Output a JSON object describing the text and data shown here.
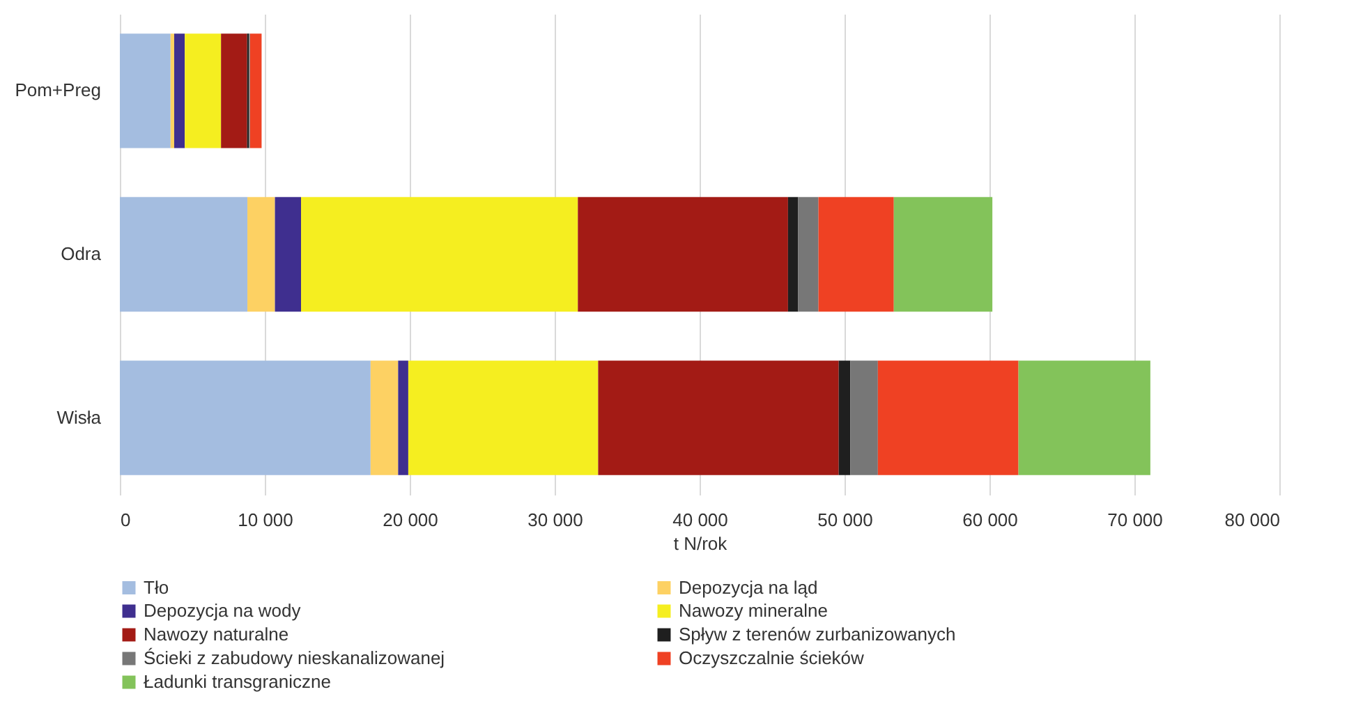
{
  "chart_data": {
    "type": "bar",
    "orientation": "horizontal",
    "stacked": true,
    "categories": [
      "Pom+Preg",
      "Odra",
      "Wisła"
    ],
    "xlabel": "t N/rok",
    "xlim": [
      0,
      80000
    ],
    "xticks": [
      {
        "value": 0,
        "label": "0"
      },
      {
        "value": 10000,
        "label": "10 000"
      },
      {
        "value": 20000,
        "label": "20 000"
      },
      {
        "value": 30000,
        "label": "30 000"
      },
      {
        "value": 40000,
        "label": "40 000"
      },
      {
        "value": 50000,
        "label": "50 000"
      },
      {
        "value": 60000,
        "label": "60 000"
      },
      {
        "value": 70000,
        "label": "70 000"
      },
      {
        "value": 80000,
        "label": "80 000"
      }
    ],
    "grid": "x",
    "legend": "bottom",
    "series": [
      {
        "name": "Tło",
        "color": "#a4bde0",
        "values": [
          3500,
          8800,
          17300
        ]
      },
      {
        "name": "Depozycja na ląd",
        "color": "#fdd163",
        "values": [
          250,
          1900,
          1900
        ]
      },
      {
        "name": "Depozycja na wody",
        "color": "#3f2f8f",
        "values": [
          730,
          1800,
          700
        ]
      },
      {
        "name": "Nawozy mineralne",
        "color": "#f5ee20",
        "values": [
          2500,
          19100,
          13100
        ]
      },
      {
        "name": "Nawozy naturalne",
        "color": "#a31b15",
        "values": [
          1800,
          14500,
          16600
        ]
      },
      {
        "name": "Spływ z terenów zurbanizowanych",
        "color": "#1f1f1f",
        "values": [
          130,
          700,
          800
        ]
      },
      {
        "name": "Ścieki z zabudowy nieskanalizowanej",
        "color": "#777777",
        "values": [
          70,
          1400,
          1900
        ]
      },
      {
        "name": "Oczyszczalnie ścieków",
        "color": "#ef4123",
        "values": [
          800,
          5200,
          9700
        ]
      },
      {
        "name": "Ładunki transgraniczne",
        "color": "#83c35a",
        "values": [
          0,
          6800,
          9100
        ]
      }
    ]
  }
}
